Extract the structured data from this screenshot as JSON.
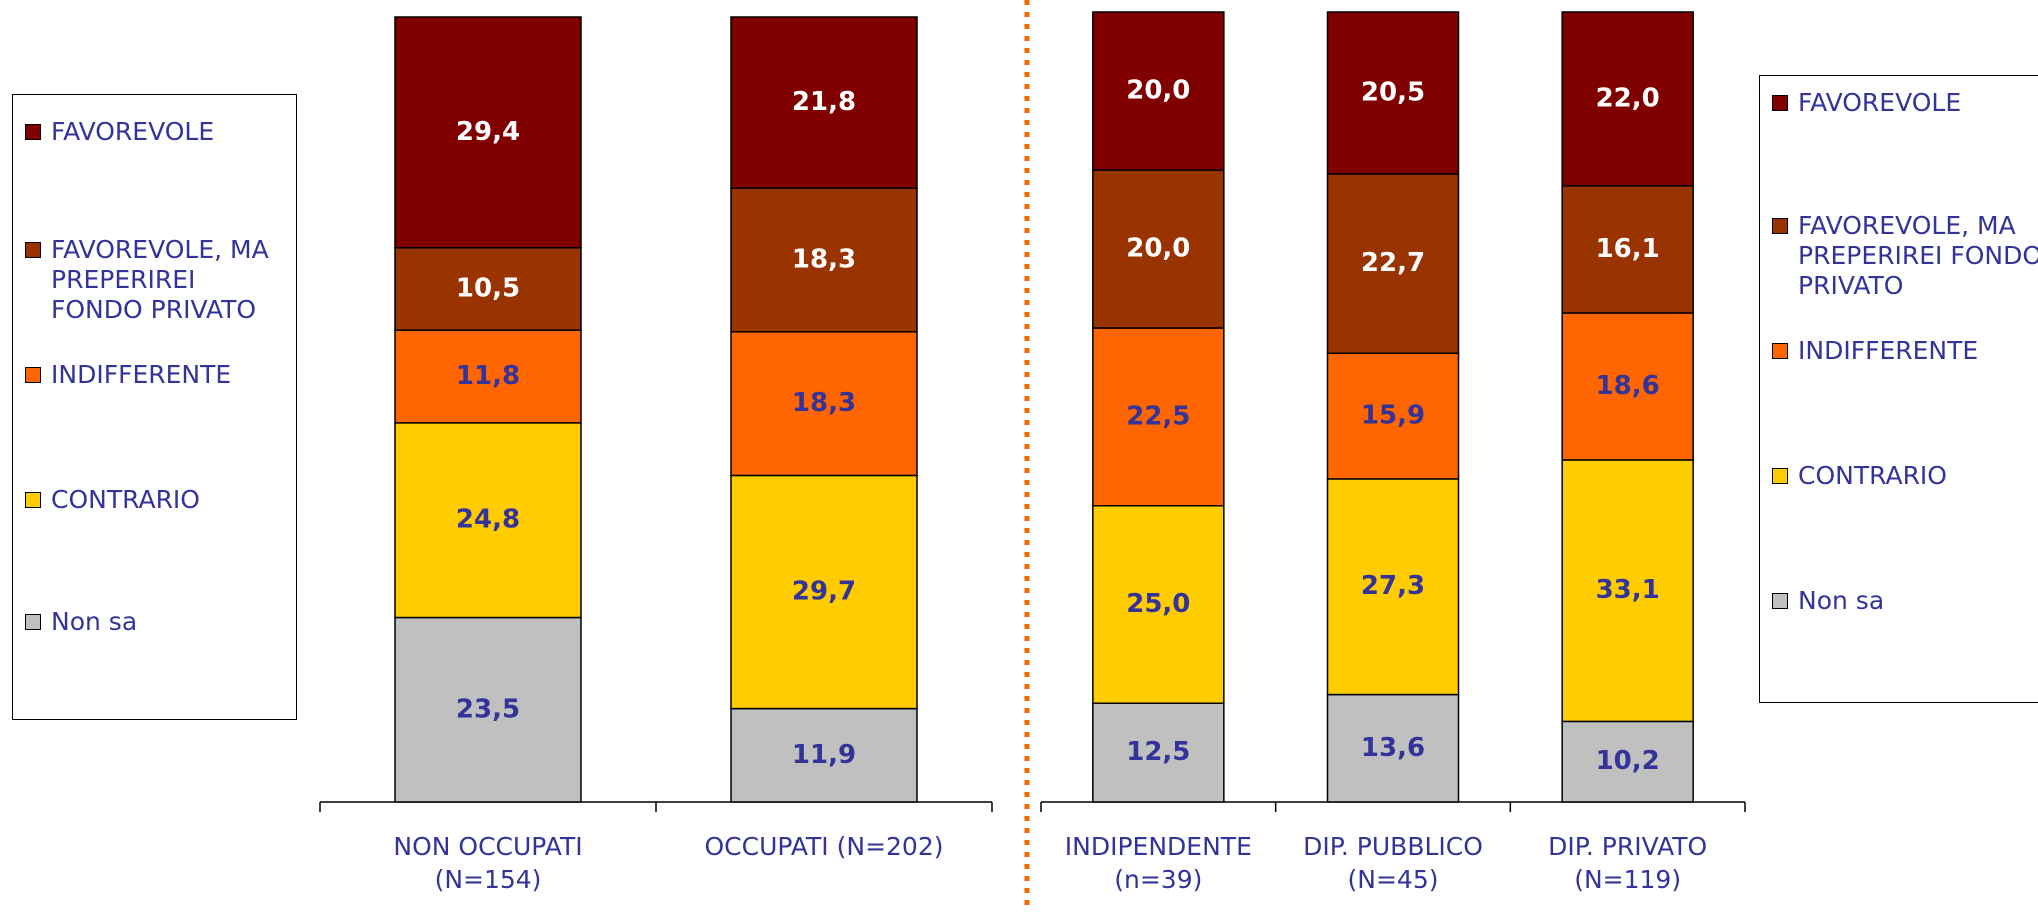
{
  "chart_data": [
    {
      "type": "bar",
      "stacked": true,
      "ylim": [
        0,
        100
      ],
      "categories": [
        "NON OCCUPATI (N=154)",
        "OCCUPATI (N=202)"
      ],
      "series": [
        {
          "name": "Non sa",
          "color": "#c0c0c0",
          "values": [
            23.5,
            11.9
          ],
          "value_labels": [
            "23,5",
            "11,9"
          ]
        },
        {
          "name": "CONTRARIO",
          "color": "#ffcc00",
          "values": [
            24.8,
            29.7
          ],
          "value_labels": [
            "24,8",
            "29,7"
          ]
        },
        {
          "name": "INDIFFERENTE",
          "color": "#ff6600",
          "values": [
            11.8,
            18.3
          ],
          "value_labels": [
            "11,8",
            "18,3"
          ]
        },
        {
          "name": "FAVOREVOLE, MA PREPERIREI FONDO PRIVATO",
          "color": "#993300",
          "values": [
            10.5,
            18.3
          ],
          "value_labels": [
            "10,5",
            "18,3"
          ]
        },
        {
          "name": "FAVOREVOLE",
          "color": "#800000",
          "values": [
            29.4,
            21.8
          ],
          "value_labels": [
            "29,4",
            "21,8"
          ]
        }
      ]
    },
    {
      "type": "bar",
      "stacked": true,
      "ylim": [
        0,
        100
      ],
      "categories": [
        "INDIPENDENTE (n=39)",
        "DIP. PUBBLICO (N=45)",
        "DIP. PRIVATO (N=119)"
      ],
      "series": [
        {
          "name": "Non sa",
          "color": "#c0c0c0",
          "values": [
            12.5,
            13.6,
            10.2
          ],
          "value_labels": [
            "12,5",
            "13,6",
            "10,2"
          ]
        },
        {
          "name": "CONTRARIO",
          "color": "#ffcc00",
          "values": [
            25.0,
            27.3,
            33.1
          ],
          "value_labels": [
            "25,0",
            "27,3",
            "33,1"
          ]
        },
        {
          "name": "INDIFFERENTE",
          "color": "#ff6600",
          "values": [
            22.5,
            15.9,
            18.6
          ],
          "value_labels": [
            "22,5",
            "15,9",
            "18,6"
          ]
        },
        {
          "name": "FAVOREVOLE, MA PREPERIREI FONDO PRIVATO",
          "color": "#993300",
          "values": [
            20.0,
            22.7,
            16.1
          ],
          "value_labels": [
            "20,0",
            "22,7",
            "16,1"
          ]
        },
        {
          "name": "FAVOREVOLE",
          "color": "#800000",
          "values": [
            20.0,
            20.5,
            22.0
          ],
          "value_labels": [
            "20,0",
            "20,5",
            "22,0"
          ]
        }
      ]
    }
  ]
}
